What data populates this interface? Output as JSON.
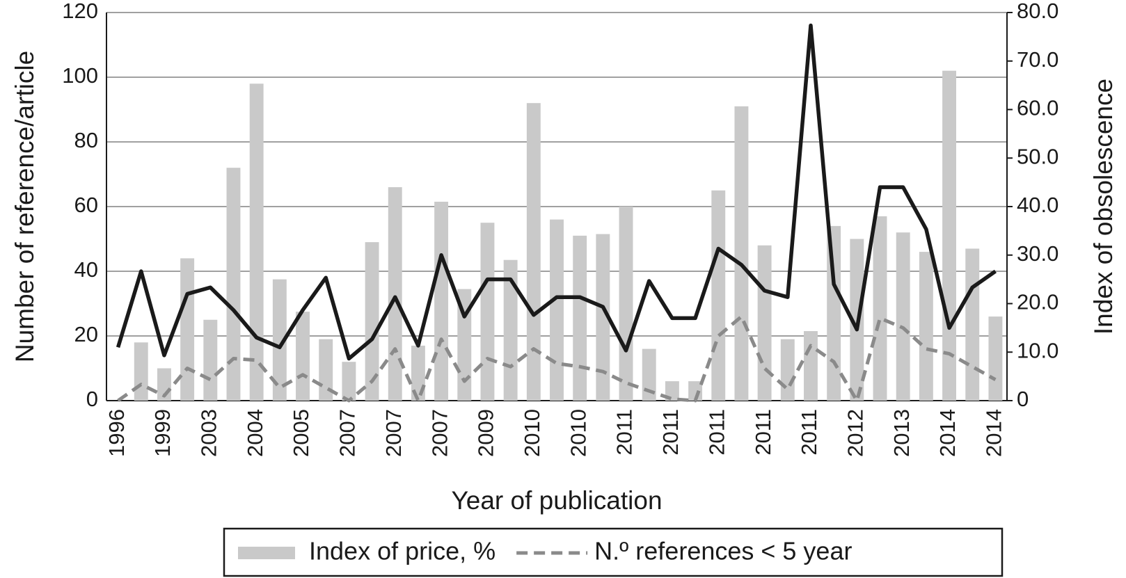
{
  "chart_data": {
    "type": "bar",
    "xlabel": "Year of publication",
    "ylabel": "Number of reference/article",
    "y2label": "Index of obsolescence",
    "categories": [
      "1996",
      null,
      "1999",
      null,
      "2003",
      null,
      "2004",
      null,
      "2005",
      null,
      "2007",
      null,
      "2007",
      null,
      "2007",
      null,
      "2009",
      null,
      "2010",
      null,
      "2010",
      null,
      "2011",
      null,
      "2011",
      null,
      "2011",
      null,
      "2011",
      null,
      "2011",
      null,
      "2012",
      null,
      "2013",
      null,
      "2014",
      null,
      "2014"
    ],
    "series": [
      {
        "name": "Index of price, %",
        "type": "bar",
        "color": "#c9c9c9",
        "values": [
          null,
          18,
          10,
          44,
          25,
          72,
          98,
          37.5,
          27.5,
          19,
          12,
          49,
          66,
          17,
          61.5,
          34.5,
          55,
          43.5,
          92,
          56,
          51,
          51.5,
          60,
          16,
          6,
          6,
          65,
          91,
          48,
          19,
          21.5,
          54,
          50,
          57,
          52,
          46,
          102,
          47,
          26
        ]
      },
      {
        "name": "N.º references < 5 year",
        "type": "line",
        "dashed": true,
        "color": "#8a8a8a",
        "values": [
          0,
          5,
          1.5,
          10,
          6.5,
          13,
          12.5,
          4,
          8,
          4,
          0,
          6,
          16,
          0,
          19,
          6,
          13,
          10.5,
          16,
          11.5,
          10.5,
          9,
          5.5,
          3,
          0.5,
          0,
          20,
          26,
          10,
          3.5,
          17,
          12,
          0,
          25.5,
          22.5,
          16,
          14.5,
          10.5,
          6.5
        ]
      },
      {
        "type": "line",
        "dashed": false,
        "color": "#1a1a1a",
        "values": [
          16.5,
          40,
          14,
          33,
          35,
          28,
          19.5,
          16.5,
          28,
          38,
          13,
          19,
          32,
          17,
          45,
          26,
          37.5,
          37.5,
          26.5,
          32,
          32,
          29,
          15.5,
          37,
          25.5,
          25.5,
          47,
          42,
          34,
          32,
          116,
          36,
          22,
          66,
          66,
          53,
          22.5,
          35,
          40
        ]
      }
    ],
    "ylim": [
      0,
      120
    ],
    "yticks": [
      0,
      20,
      40,
      60,
      80,
      100,
      120
    ],
    "y2lim": [
      0,
      80
    ],
    "y2ticks": [
      {
        "value": 0,
        "label": "0"
      },
      {
        "value": 10,
        "label": "10.0"
      },
      {
        "value": 20,
        "label": "20.0"
      },
      {
        "value": 30,
        "label": "30.0"
      },
      {
        "value": 40,
        "label": "40.0"
      },
      {
        "value": 50,
        "label": "50.0"
      },
      {
        "value": 60,
        "label": "60.0"
      },
      {
        "value": 70,
        "label": "70.0"
      },
      {
        "value": 80,
        "label": "80.0"
      }
    ],
    "grid": true,
    "legend": "bottom"
  }
}
